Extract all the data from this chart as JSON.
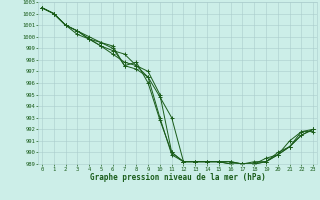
{
  "title": "Graphe pression niveau de la mer (hPa)",
  "background_color": "#cceee8",
  "grid_color": "#aacccc",
  "line_color": "#1a5c1a",
  "ylim": [
    989,
    1003
  ],
  "xlim": [
    0,
    23
  ],
  "yticks": [
    989,
    990,
    991,
    992,
    993,
    994,
    995,
    996,
    997,
    998,
    999,
    1000,
    1001,
    1002,
    1003
  ],
  "xticks": [
    0,
    1,
    2,
    3,
    4,
    5,
    6,
    7,
    8,
    9,
    10,
    11,
    12,
    13,
    14,
    15,
    16,
    17,
    18,
    19,
    20,
    21,
    22,
    23
  ],
  "series": [
    [
      1002.5,
      1002.0,
      1001.0,
      1000.5,
      1000.0,
      999.5,
      999.2,
      997.5,
      997.8,
      996.0,
      992.8,
      990.0,
      989.2,
      989.2,
      989.2,
      989.2,
      989.2,
      989.0,
      989.0,
      989.2,
      989.8,
      990.5,
      991.8,
      991.8
    ],
    [
      1002.5,
      1002.0,
      1001.0,
      1000.5,
      999.8,
      999.2,
      998.5,
      997.8,
      997.5,
      996.5,
      994.8,
      993.0,
      989.2,
      989.2,
      989.2,
      989.2,
      989.0,
      989.0,
      989.0,
      989.2,
      989.8,
      990.5,
      991.5,
      992.0
    ],
    [
      1002.5,
      1002.0,
      1001.0,
      1000.2,
      999.8,
      999.2,
      998.8,
      998.5,
      997.5,
      997.0,
      995.0,
      990.0,
      989.2,
      989.2,
      989.2,
      989.2,
      989.0,
      989.0,
      989.0,
      989.5,
      989.8,
      991.0,
      991.8,
      992.0
    ],
    [
      1002.5,
      1002.0,
      1001.0,
      1000.5,
      999.8,
      999.5,
      999.0,
      997.5,
      997.2,
      996.5,
      993.0,
      989.8,
      989.2,
      989.2,
      989.2,
      989.2,
      989.2,
      989.0,
      989.2,
      989.2,
      990.0,
      990.5,
      991.5,
      992.0
    ]
  ],
  "title_fontsize": 5.5,
  "tick_fontsize": 4.0,
  "linewidth": 0.7,
  "markersize": 2.5,
  "markeredgewidth": 0.7
}
